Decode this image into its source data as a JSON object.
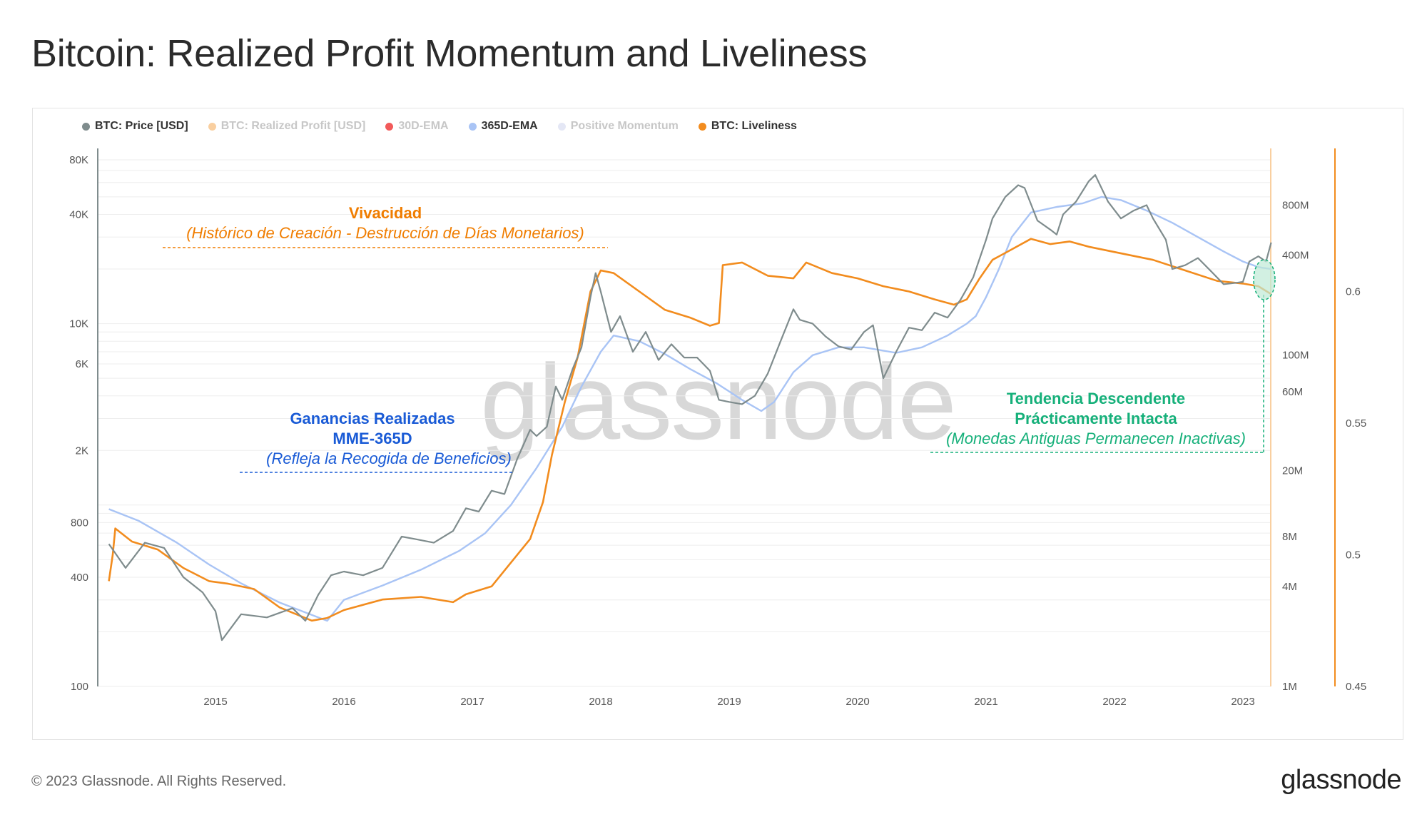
{
  "header": {
    "title": "Bitcoin: Realized Profit Momentum and Liveliness"
  },
  "footer": {
    "copyright": "© 2023 Glassnode. All Rights Reserved.",
    "logo": "glassnode"
  },
  "watermark": "glassnode",
  "colors": {
    "price": "#7f8c8d",
    "ema365": "#a9c4f5",
    "liveliness": "#f28c1e",
    "annot_orange": "#f07d00",
    "annot_blue": "#1a5bd6",
    "annot_green": "#16b07a"
  },
  "legend": [
    {
      "label": "BTC: Price [USD]",
      "color": "#7f8c8d",
      "active": true
    },
    {
      "label": "BTC: Realized Profit [USD]",
      "color": "#f9cfa0",
      "active": false
    },
    {
      "label": "30D-EMA",
      "color": "#f25a5a",
      "active": false
    },
    {
      "label": "365D-EMA",
      "color": "#a9c4f5",
      "active": true
    },
    {
      "label": "Positive Momentum",
      "color": "#e4e7f5",
      "active": false
    },
    {
      "label": "BTC: Liveliness",
      "color": "#f28c1e",
      "active": true
    }
  ],
  "annotations": {
    "liveliness": {
      "title": "Vivacidad",
      "subtitle": "(Histórico de Creación - Destrucción de Días Monetarios)"
    },
    "realized": {
      "title1": "Ganancias Realizadas",
      "title2": "MME-365D",
      "subtitle": "(Refleja la Recogida de Beneficios)"
    },
    "downtrend": {
      "title1": "Tendencia Descendente",
      "title2": "Prácticamente Intacta",
      "subtitle": "(Monedas Antiguas Permanecen Inactivas)"
    }
  },
  "chart_data": {
    "type": "line",
    "x_ticks": [
      "2015",
      "2016",
      "2017",
      "2018",
      "2019",
      "2020",
      "2021",
      "2022",
      "2023"
    ],
    "y_left": {
      "label": "BTC: Price [USD]",
      "scale": "log",
      "range": [
        100,
        80000
      ],
      "ticks": [
        "80K",
        "40K",
        "10K",
        "6K",
        "2K",
        "800",
        "400",
        "100"
      ]
    },
    "y_mid": {
      "label": "BTC: Realized Profit [USD]",
      "scale": "log",
      "range": [
        1000000,
        1500000000
      ],
      "ticks": [
        "800M",
        "400M",
        "100M",
        "60M",
        "20M",
        "8M",
        "4M",
        "1M"
      ]
    },
    "y_right": {
      "label": "BTC: Liveliness",
      "scale": "linear",
      "range": [
        0.45,
        0.65
      ],
      "ticks": [
        "0.6",
        "0.55",
        "0.5",
        "0.45"
      ]
    },
    "series": [
      {
        "name": "BTC: Price [USD]",
        "axis": "left",
        "points": [
          [
            "2014.17",
            610
          ],
          [
            "2014.3",
            450
          ],
          [
            "2014.45",
            620
          ],
          [
            "2014.6",
            580
          ],
          [
            "2014.75",
            400
          ],
          [
            "2014.9",
            330
          ],
          [
            "2015.0",
            260
          ],
          [
            "2015.05",
            180
          ],
          [
            "2015.2",
            250
          ],
          [
            "2015.4",
            240
          ],
          [
            "2015.6",
            270
          ],
          [
            "2015.7",
            230
          ],
          [
            "2015.8",
            320
          ],
          [
            "2015.9",
            410
          ],
          [
            "2016.0",
            430
          ],
          [
            "2016.15",
            410
          ],
          [
            "2016.3",
            450
          ],
          [
            "2016.45",
            670
          ],
          [
            "2016.55",
            650
          ],
          [
            "2016.7",
            620
          ],
          [
            "2016.85",
            720
          ],
          [
            "2016.95",
            960
          ],
          [
            "2017.05",
            920
          ],
          [
            "2017.15",
            1200
          ],
          [
            "2017.25",
            1150
          ],
          [
            "2017.35",
            1800
          ],
          [
            "2017.45",
            2600
          ],
          [
            "2017.5",
            2400
          ],
          [
            "2017.58",
            2700
          ],
          [
            "2017.65",
            4500
          ],
          [
            "2017.7",
            3800
          ],
          [
            "2017.78",
            5600
          ],
          [
            "2017.85",
            7400
          ],
          [
            "2017.92",
            14000
          ],
          [
            "2017.96",
            19000
          ],
          [
            "2018.0",
            15000
          ],
          [
            "2018.08",
            9000
          ],
          [
            "2018.15",
            11000
          ],
          [
            "2018.25",
            7000
          ],
          [
            "2018.35",
            9000
          ],
          [
            "2018.45",
            6300
          ],
          [
            "2018.55",
            7700
          ],
          [
            "2018.65",
            6500
          ],
          [
            "2018.75",
            6500
          ],
          [
            "2018.85",
            5500
          ],
          [
            "2018.92",
            3800
          ],
          [
            "2019.0",
            3700
          ],
          [
            "2019.1",
            3600
          ],
          [
            "2019.2",
            4000
          ],
          [
            "2019.3",
            5300
          ],
          [
            "2019.4",
            8000
          ],
          [
            "2019.5",
            12000
          ],
          [
            "2019.55",
            10500
          ],
          [
            "2019.65",
            10000
          ],
          [
            "2019.75",
            8500
          ],
          [
            "2019.85",
            7500
          ],
          [
            "2019.95",
            7200
          ],
          [
            "2020.05",
            9000
          ],
          [
            "2020.12",
            9800
          ],
          [
            "2020.2",
            5000
          ],
          [
            "2020.3",
            7000
          ],
          [
            "2020.4",
            9500
          ],
          [
            "2020.5",
            9200
          ],
          [
            "2020.6",
            11500
          ],
          [
            "2020.7",
            10800
          ],
          [
            "2020.8",
            13500
          ],
          [
            "2020.9",
            18000
          ],
          [
            "2021.0",
            29000
          ],
          [
            "2021.05",
            38000
          ],
          [
            "2021.15",
            50000
          ],
          [
            "2021.25",
            58000
          ],
          [
            "2021.3",
            56000
          ],
          [
            "2021.4",
            37000
          ],
          [
            "2021.5",
            33000
          ],
          [
            "2021.55",
            31000
          ],
          [
            "2021.6",
            40000
          ],
          [
            "2021.7",
            47000
          ],
          [
            "2021.8",
            61000
          ],
          [
            "2021.85",
            66000
          ],
          [
            "2021.95",
            47000
          ],
          [
            "2022.05",
            38000
          ],
          [
            "2022.15",
            42000
          ],
          [
            "2022.25",
            45000
          ],
          [
            "2022.3",
            38000
          ],
          [
            "2022.4",
            29000
          ],
          [
            "2022.45",
            20000
          ],
          [
            "2022.55",
            21000
          ],
          [
            "2022.65",
            23000
          ],
          [
            "2022.75",
            19500
          ],
          [
            "2022.85",
            16500
          ],
          [
            "2022.95",
            16800
          ],
          [
            "2023.0",
            17000
          ],
          [
            "2023.05",
            22000
          ],
          [
            "2023.12",
            23500
          ],
          [
            "2023.18",
            22000
          ],
          [
            "2023.22",
            28000
          ]
        ]
      },
      {
        "name": "365D-EMA",
        "axis": "left",
        "points": [
          [
            "2014.17",
            950
          ],
          [
            "2014.4",
            820
          ],
          [
            "2014.7",
            620
          ],
          [
            "2014.95",
            470
          ],
          [
            "2015.2",
            370
          ],
          [
            "2015.5",
            290
          ],
          [
            "2015.8",
            240
          ],
          [
            "2015.87",
            230
          ],
          [
            "2016.0",
            300
          ],
          [
            "2016.3",
            360
          ],
          [
            "2016.6",
            440
          ],
          [
            "2016.9",
            560
          ],
          [
            "2017.1",
            700
          ],
          [
            "2017.3",
            1000
          ],
          [
            "2017.5",
            1600
          ],
          [
            "2017.7",
            2700
          ],
          [
            "2017.85",
            4500
          ],
          [
            "2018.0",
            7000
          ],
          [
            "2018.1",
            8600
          ],
          [
            "2018.3",
            8000
          ],
          [
            "2018.5",
            6800
          ],
          [
            "2018.7",
            5600
          ],
          [
            "2018.9",
            4700
          ],
          [
            "2019.1",
            3800
          ],
          [
            "2019.25",
            3300
          ],
          [
            "2019.35",
            3700
          ],
          [
            "2019.5",
            5400
          ],
          [
            "2019.65",
            6700
          ],
          [
            "2019.85",
            7400
          ],
          [
            "2020.05",
            7400
          ],
          [
            "2020.3",
            6900
          ],
          [
            "2020.5",
            7400
          ],
          [
            "2020.7",
            8600
          ],
          [
            "2020.85",
            10000
          ],
          [
            "2020.92",
            11000
          ],
          [
            "2021.0",
            14000
          ],
          [
            "2021.1",
            20000
          ],
          [
            "2021.2",
            30000
          ],
          [
            "2021.35",
            41000
          ],
          [
            "2021.55",
            44000
          ],
          [
            "2021.75",
            46000
          ],
          [
            "2021.9",
            50000
          ],
          [
            "2022.05",
            48000
          ],
          [
            "2022.25",
            42000
          ],
          [
            "2022.45",
            36000
          ],
          [
            "2022.65",
            30000
          ],
          [
            "2022.85",
            25000
          ],
          [
            "2023.0",
            22000
          ],
          [
            "2023.12",
            20500
          ],
          [
            "2023.22",
            20000
          ]
        ]
      },
      {
        "name": "BTC: Liveliness",
        "axis": "right",
        "points": [
          [
            "2014.17",
            0.49
          ],
          [
            "2014.2",
            0.5
          ],
          [
            "2014.22",
            0.51
          ],
          [
            "2014.35",
            0.505
          ],
          [
            "2014.55",
            0.502
          ],
          [
            "2014.75",
            0.495
          ],
          [
            "2014.95",
            0.49
          ],
          [
            "2015.1",
            0.489
          ],
          [
            "2015.3",
            0.487
          ],
          [
            "2015.5",
            0.48
          ],
          [
            "2015.75",
            0.475
          ],
          [
            "2015.87",
            0.476
          ],
          [
            "2016.0",
            0.479
          ],
          [
            "2016.3",
            0.483
          ],
          [
            "2016.6",
            0.484
          ],
          [
            "2016.85",
            0.482
          ],
          [
            "2016.95",
            0.485
          ],
          [
            "2017.15",
            0.488
          ],
          [
            "2017.3",
            0.497
          ],
          [
            "2017.45",
            0.506
          ],
          [
            "2017.55",
            0.52
          ],
          [
            "2017.62",
            0.538
          ],
          [
            "2017.72",
            0.558
          ],
          [
            "2017.82",
            0.575
          ],
          [
            "2017.92",
            0.6
          ],
          [
            "2018.0",
            0.608
          ],
          [
            "2018.1",
            0.607
          ],
          [
            "2018.3",
            0.6
          ],
          [
            "2018.5",
            0.593
          ],
          [
            "2018.7",
            0.59
          ],
          [
            "2018.85",
            0.587
          ],
          [
            "2018.92",
            0.588
          ],
          [
            "2018.95",
            0.61
          ],
          [
            "2019.1",
            0.611
          ],
          [
            "2019.3",
            0.606
          ],
          [
            "2019.5",
            0.605
          ],
          [
            "2019.6",
            0.611
          ],
          [
            "2019.8",
            0.607
          ],
          [
            "2020.0",
            0.605
          ],
          [
            "2020.2",
            0.602
          ],
          [
            "2020.4",
            0.6
          ],
          [
            "2020.6",
            0.597
          ],
          [
            "2020.75",
            0.595
          ],
          [
            "2020.85",
            0.597
          ],
          [
            "2020.95",
            0.605
          ],
          [
            "2021.05",
            0.612
          ],
          [
            "2021.2",
            0.616
          ],
          [
            "2021.35",
            0.62
          ],
          [
            "2021.5",
            0.618
          ],
          [
            "2021.65",
            0.619
          ],
          [
            "2021.8",
            0.617
          ],
          [
            "2022.0",
            0.615
          ],
          [
            "2022.3",
            0.612
          ],
          [
            "2022.55",
            0.608
          ],
          [
            "2022.8",
            0.604
          ],
          [
            "2023.0",
            0.603
          ],
          [
            "2023.12",
            0.602
          ],
          [
            "2023.22",
            0.599
          ]
        ]
      }
    ]
  }
}
